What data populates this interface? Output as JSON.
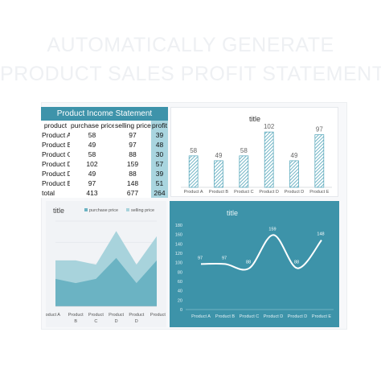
{
  "header": {
    "line1": "AUTOMATICALLY GENERATE",
    "line2": "PRODUCT SALES PROFIT STATEMENT"
  },
  "table": {
    "title": "Product Income Statement",
    "headers": [
      "product",
      "purchase price",
      "selling price",
      "profit"
    ],
    "rows": [
      [
        "Product A",
        "58",
        "97",
        "39"
      ],
      [
        "Product B",
        "49",
        "97",
        "48"
      ],
      [
        "Product C",
        "58",
        "88",
        "30"
      ],
      [
        "Product D",
        "102",
        "159",
        "57"
      ],
      [
        "Product D",
        "49",
        "88",
        "39"
      ],
      [
        "Product E",
        "97",
        "148",
        "51"
      ],
      [
        "total",
        "413",
        "677",
        "264"
      ]
    ]
  },
  "colors": {
    "accent": "#3e93aa",
    "profit_fill": "#a9d5df",
    "area_purchase": "#6bb3c3",
    "area_selling": "#a8d3dc"
  },
  "chart_data": [
    {
      "type": "bar",
      "title": "title",
      "categories": [
        "Product A",
        "Product B",
        "Product C",
        "Product D",
        "Product D",
        "Product E"
      ],
      "values": [
        58,
        49,
        58,
        102,
        49,
        97
      ],
      "ylim": [
        0,
        120
      ],
      "grid": false
    },
    {
      "type": "area",
      "title": "title",
      "categories": [
        "Product A",
        "Product B",
        "Product C",
        "Product D",
        "Product D",
        "Product E"
      ],
      "category_lines": [
        [
          "Product A",
          ""
        ],
        [
          "Product",
          "B"
        ],
        [
          "Product",
          "C"
        ],
        [
          "Product",
          "D"
        ],
        [
          "Product",
          "D"
        ],
        [
          "Product E",
          ""
        ]
      ],
      "series": [
        {
          "name": "purchase price",
          "values": [
            58,
            49,
            58,
            102,
            49,
            97
          ]
        },
        {
          "name": "selling price",
          "values": [
            97,
            97,
            88,
            159,
            88,
            148
          ]
        }
      ],
      "ylim": [
        0,
        180
      ],
      "legend": "top",
      "grid": true
    },
    {
      "type": "line",
      "title": "title",
      "categories": [
        "Product A",
        "Product B",
        "Product C",
        "Product D",
        "Product D",
        "Product E"
      ],
      "values": [
        97,
        97,
        88,
        159,
        88,
        148
      ],
      "ylim": [
        0,
        180
      ],
      "yticks": [
        0,
        20,
        40,
        60,
        80,
        100,
        120,
        140,
        160,
        180
      ],
      "grid": false
    }
  ]
}
